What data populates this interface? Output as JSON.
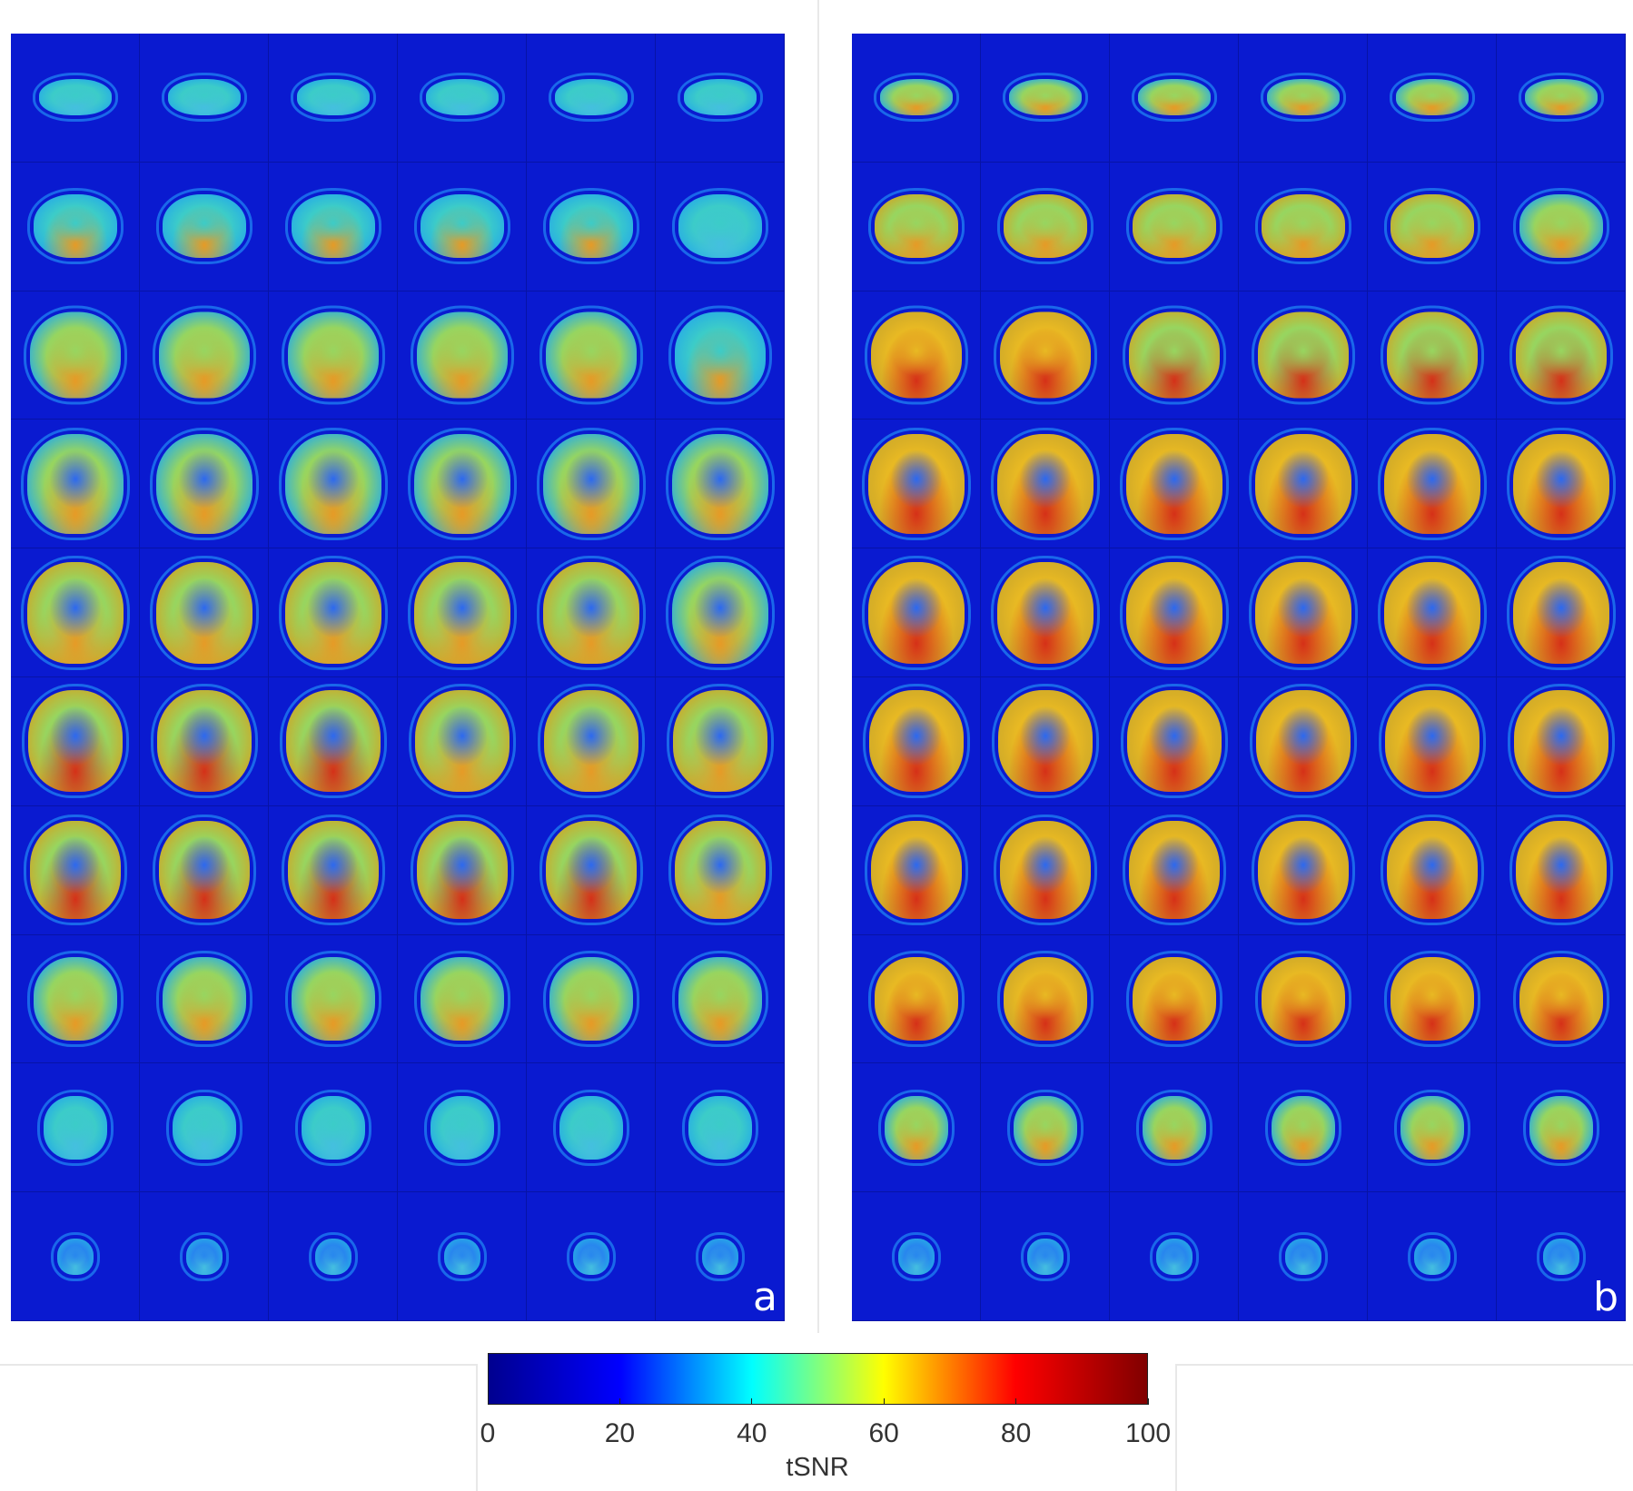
{
  "figure": {
    "panels": [
      {
        "letter": "a",
        "rows": 10,
        "cols": 6
      },
      {
        "letter": "b",
        "rows": 10,
        "cols": 6
      }
    ],
    "colorbar": {
      "label": "tSNR",
      "min": 0,
      "max": 100,
      "ticks": [
        "0",
        "20",
        "40",
        "60",
        "80",
        "100"
      ],
      "tick_values": [
        0,
        20,
        40,
        60,
        80,
        100
      ],
      "colormap": [
        "#00008f",
        "#0000ff",
        "#00ffff",
        "#ffff00",
        "#ff0000",
        "#800000"
      ]
    },
    "colors": {
      "background_field": "#0a1ad0"
    }
  }
}
